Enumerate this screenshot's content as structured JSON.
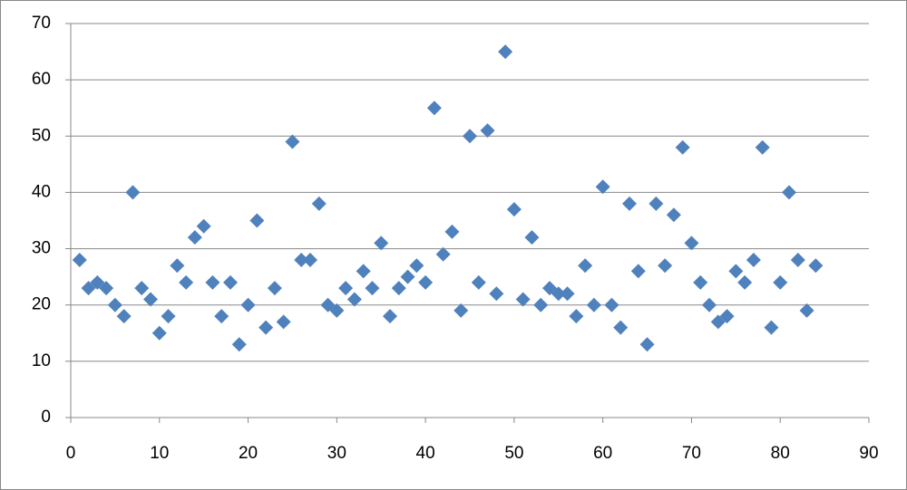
{
  "chart_data": {
    "type": "scatter",
    "x": [
      1,
      2,
      3,
      4,
      5,
      6,
      7,
      8,
      9,
      10,
      11,
      12,
      13,
      14,
      15,
      16,
      17,
      18,
      19,
      20,
      21,
      22,
      23,
      24,
      25,
      26,
      27,
      28,
      29,
      30,
      31,
      32,
      33,
      34,
      35,
      36,
      37,
      38,
      39,
      40,
      41,
      42,
      43,
      44,
      45,
      46,
      47,
      48,
      49,
      50,
      51,
      52,
      53,
      54,
      55,
      56,
      57,
      58,
      59,
      60,
      61,
      62,
      63,
      64,
      65,
      66,
      67,
      68,
      69,
      70,
      71,
      72,
      73,
      74,
      75,
      76,
      77,
      78,
      79,
      80,
      81,
      82,
      83,
      84
    ],
    "series": [
      {
        "color": "#4f81bd",
        "values": [
          28,
          23,
          24,
          23,
          20,
          18,
          40,
          23,
          21,
          15,
          18,
          27,
          24,
          32,
          34,
          24,
          18,
          24,
          13,
          20,
          35,
          16,
          23,
          17,
          49,
          28,
          28,
          38,
          20,
          19,
          23,
          21,
          26,
          23,
          31,
          18,
          23,
          25,
          27,
          24,
          55,
          29,
          33,
          19,
          50,
          24,
          51,
          22,
          65,
          37,
          21,
          32,
          20,
          23,
          22,
          22,
          18,
          27,
          20,
          41,
          20,
          16,
          38,
          26,
          13,
          38,
          27,
          36,
          48,
          31,
          24,
          20,
          17,
          18,
          26,
          24,
          28,
          48,
          16,
          24,
          40,
          28,
          19,
          27
        ]
      }
    ],
    "xlim": [
      0,
      90
    ],
    "xticks": [
      0,
      10,
      20,
      30,
      40,
      50,
      60,
      70,
      80,
      90
    ],
    "ylim": [
      0,
      70
    ],
    "yticks": [
      0,
      10,
      20,
      30,
      40,
      50,
      60,
      70
    ],
    "grid": true
  }
}
